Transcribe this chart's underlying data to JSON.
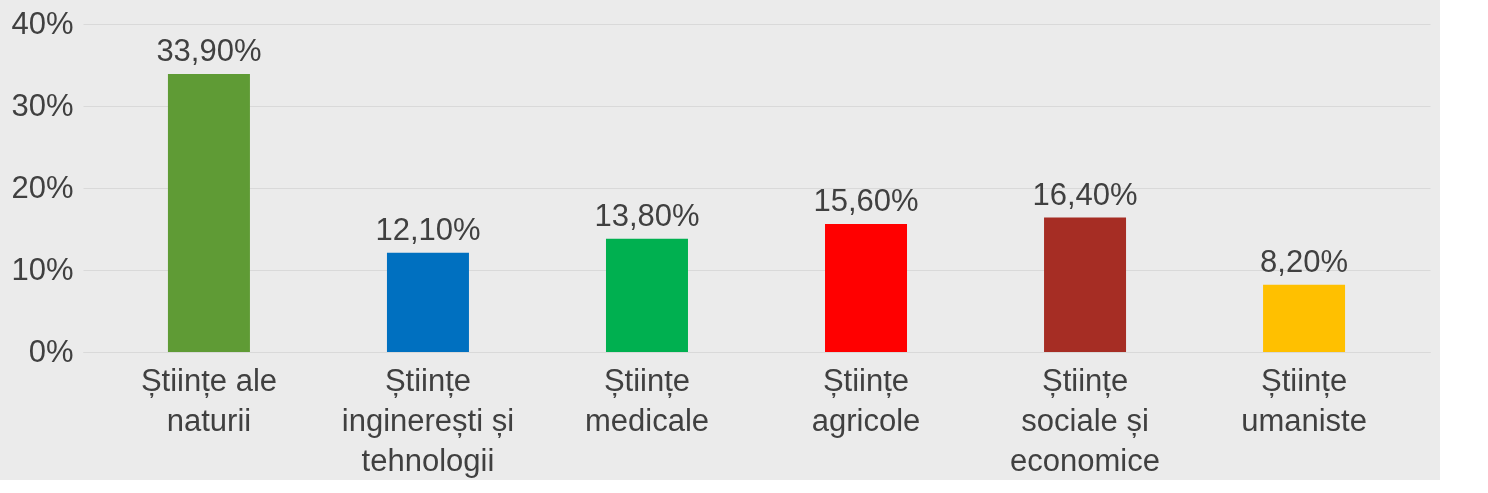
{
  "chart_data": {
    "type": "bar",
    "categories": [
      "Științe ale naturii",
      "Științe inginerești și tehnologii",
      "Științe medicale",
      "Științe agricole",
      "Științe sociale și economice",
      "Științe umaniste"
    ],
    "values": [
      33.9,
      12.1,
      13.8,
      15.6,
      16.4,
      8.2
    ],
    "colors": [
      "#5f9b35",
      "#0070c0",
      "#00b050",
      "#ff0000",
      "#a62d24",
      "#ffc000"
    ],
    "value_labels": [
      "33,90%",
      "12,10%",
      "13,80%",
      "15,60%",
      "16,40%",
      "8,20%"
    ],
    "ylim": [
      0,
      40
    ],
    "yticks": [
      {
        "value": 0,
        "label": "0%"
      },
      {
        "value": 10,
        "label": "10%"
      },
      {
        "value": 20,
        "label": "20%"
      },
      {
        "value": 30,
        "label": "30%"
      },
      {
        "value": 40,
        "label": "40%"
      }
    ],
    "grid": "y"
  }
}
